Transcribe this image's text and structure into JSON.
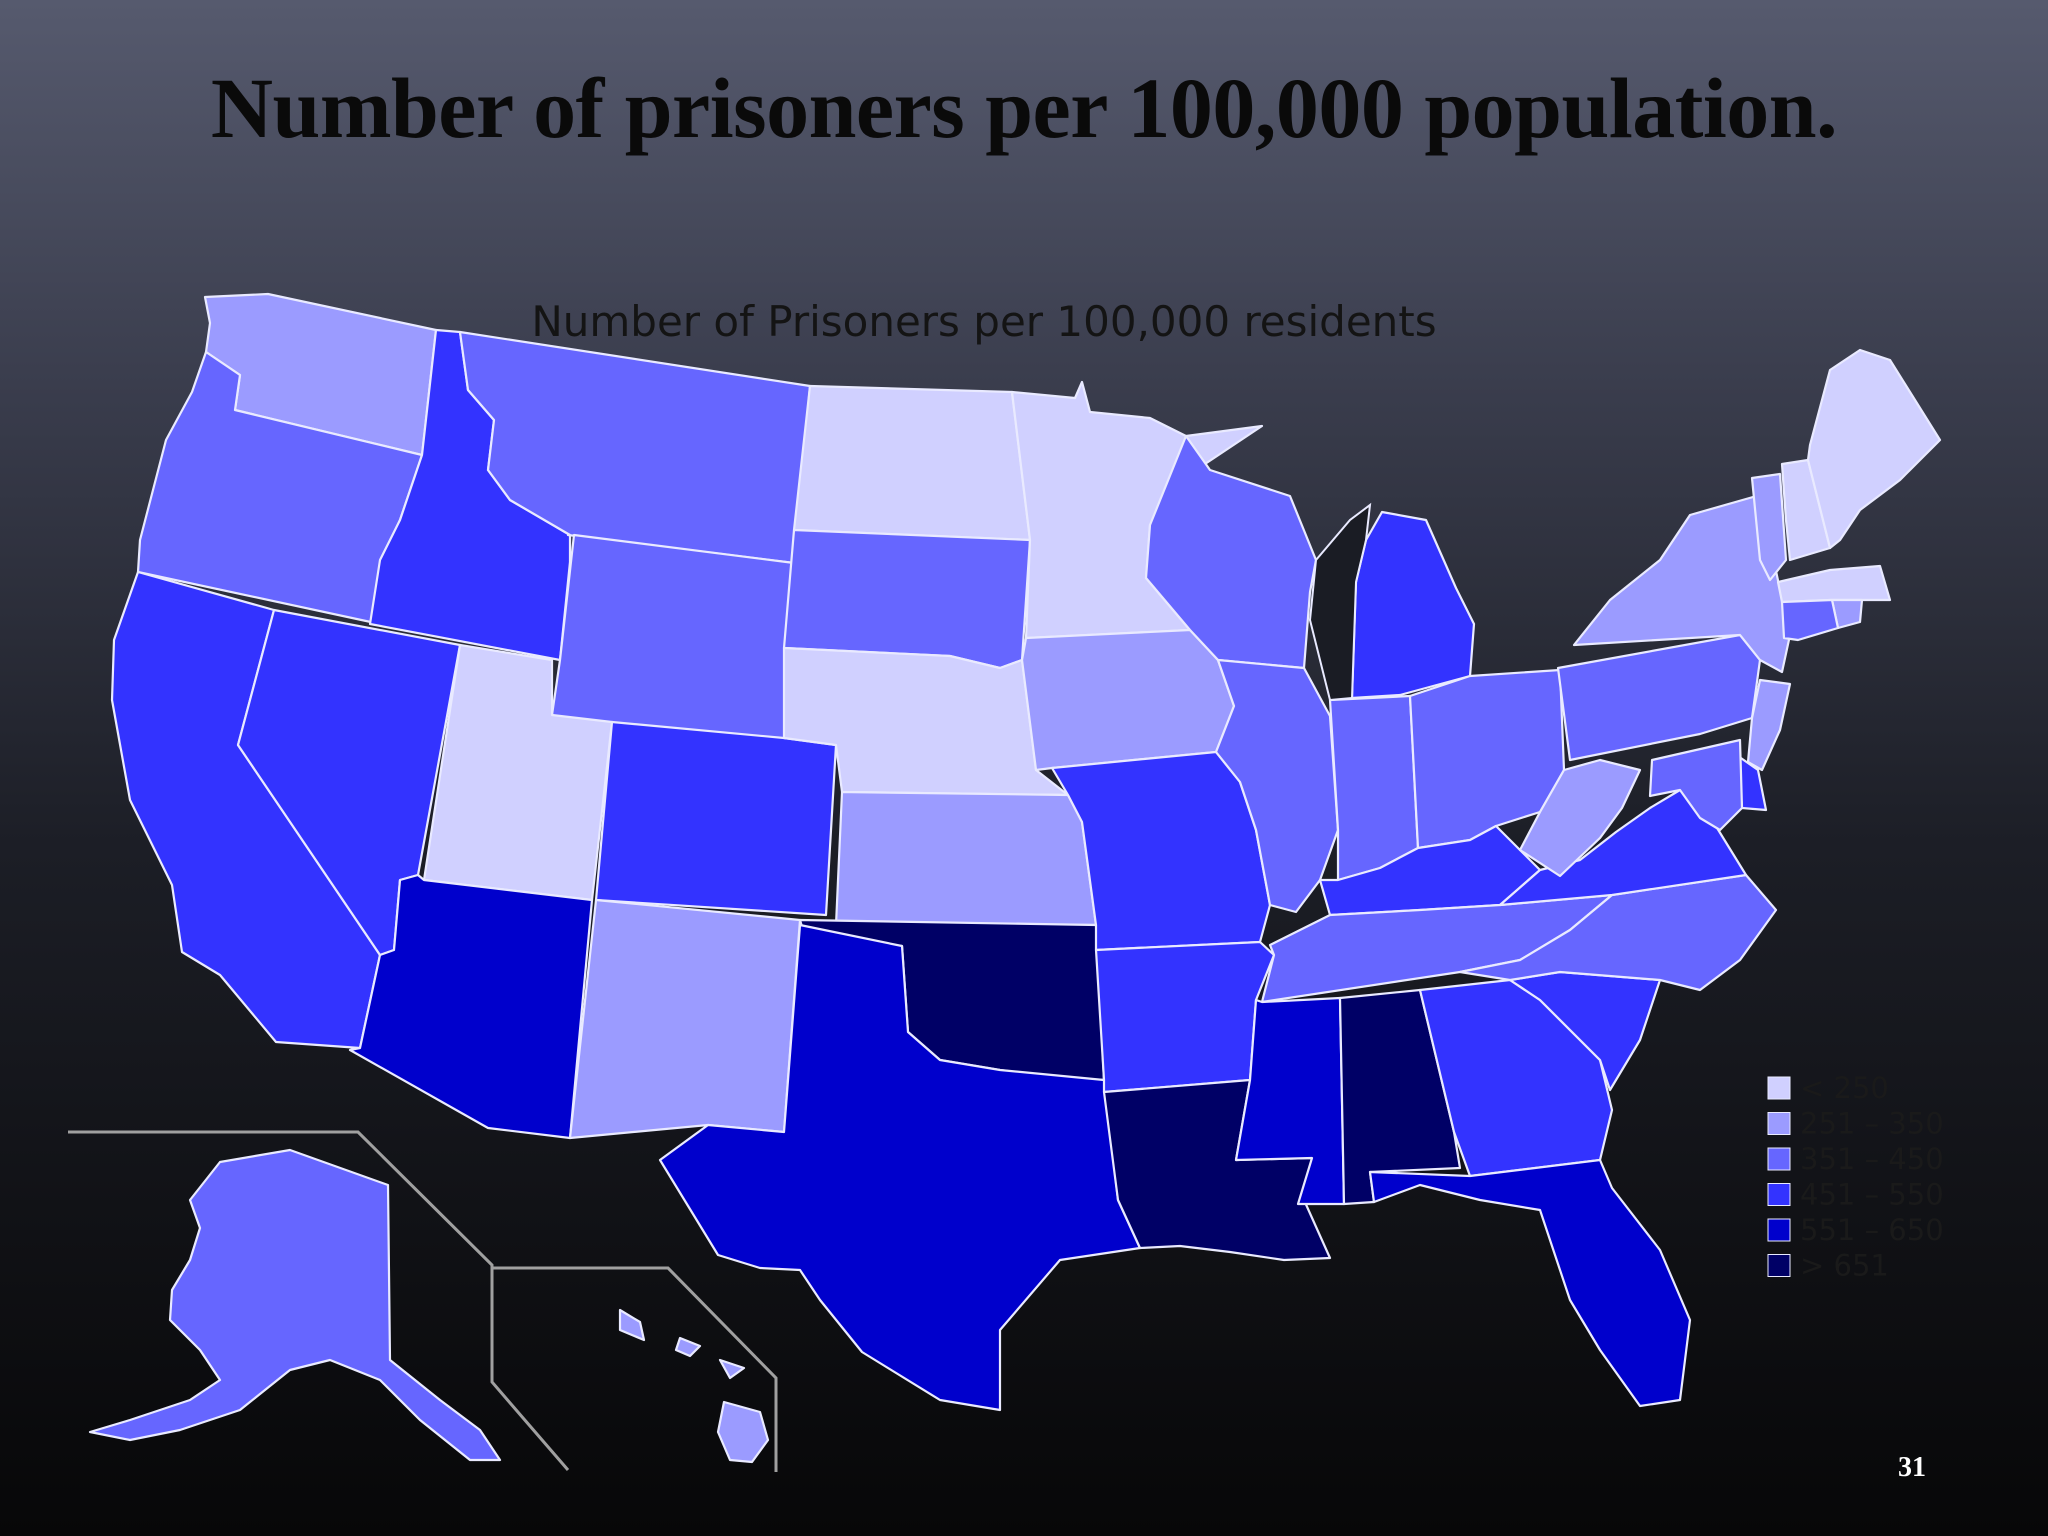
{
  "slide": {
    "title": "Number of prisoners per 100,000 population.",
    "page_number": "31"
  },
  "map": {
    "title": "Number of Prisoners per 100,000 residents",
    "legend": [
      {
        "label": "< 250",
        "color": "#d0d0ff"
      },
      {
        "label": "251 – 350",
        "color": "#9b9bff"
      },
      {
        "label": "351 – 450",
        "color": "#6666ff"
      },
      {
        "label": "451 – 550",
        "color": "#3333ff"
      },
      {
        "label": "551 – 650",
        "color": "#0000cc"
      },
      {
        "label": "> 651",
        "color": "#000066"
      }
    ],
    "states": [
      {
        "name": "WA",
        "bin": 1
      },
      {
        "name": "OR",
        "bin": 2
      },
      {
        "name": "CA",
        "bin": 3
      },
      {
        "name": "ID",
        "bin": 3
      },
      {
        "name": "NV",
        "bin": 3
      },
      {
        "name": "MT",
        "bin": 2
      },
      {
        "name": "WY",
        "bin": 2
      },
      {
        "name": "UT",
        "bin": 0
      },
      {
        "name": "AZ",
        "bin": 4
      },
      {
        "name": "CO",
        "bin": 3
      },
      {
        "name": "NM",
        "bin": 1
      },
      {
        "name": "ND",
        "bin": 0
      },
      {
        "name": "SD",
        "bin": 2
      },
      {
        "name": "NE",
        "bin": 0
      },
      {
        "name": "KS",
        "bin": 1
      },
      {
        "name": "OK",
        "bin": 5
      },
      {
        "name": "TX",
        "bin": 4
      },
      {
        "name": "MN",
        "bin": 0
      },
      {
        "name": "IA",
        "bin": 1
      },
      {
        "name": "MO",
        "bin": 3
      },
      {
        "name": "AR",
        "bin": 3
      },
      {
        "name": "LA",
        "bin": 5
      },
      {
        "name": "WI",
        "bin": 2
      },
      {
        "name": "IL",
        "bin": 2
      },
      {
        "name": "MI",
        "bin": 3
      },
      {
        "name": "IN",
        "bin": 2
      },
      {
        "name": "OH",
        "bin": 2
      },
      {
        "name": "KY",
        "bin": 3
      },
      {
        "name": "TN",
        "bin": 2
      },
      {
        "name": "MS",
        "bin": 4
      },
      {
        "name": "AL",
        "bin": 5
      },
      {
        "name": "GA",
        "bin": 3
      },
      {
        "name": "FL",
        "bin": 4
      },
      {
        "name": "SC",
        "bin": 3
      },
      {
        "name": "NC",
        "bin": 2
      },
      {
        "name": "VA",
        "bin": 3
      },
      {
        "name": "WV",
        "bin": 1
      },
      {
        "name": "PA",
        "bin": 2
      },
      {
        "name": "NY",
        "bin": 1
      },
      {
        "name": "VT",
        "bin": 1
      },
      {
        "name": "NH",
        "bin": 0
      },
      {
        "name": "ME",
        "bin": 0
      },
      {
        "name": "MA",
        "bin": 0
      },
      {
        "name": "RI",
        "bin": 1
      },
      {
        "name": "CT",
        "bin": 2
      },
      {
        "name": "NJ",
        "bin": 1
      },
      {
        "name": "DE",
        "bin": 3
      },
      {
        "name": "MD",
        "bin": 2
      },
      {
        "name": "AK",
        "bin": 2
      },
      {
        "name": "HI",
        "bin": 1
      }
    ]
  }
}
